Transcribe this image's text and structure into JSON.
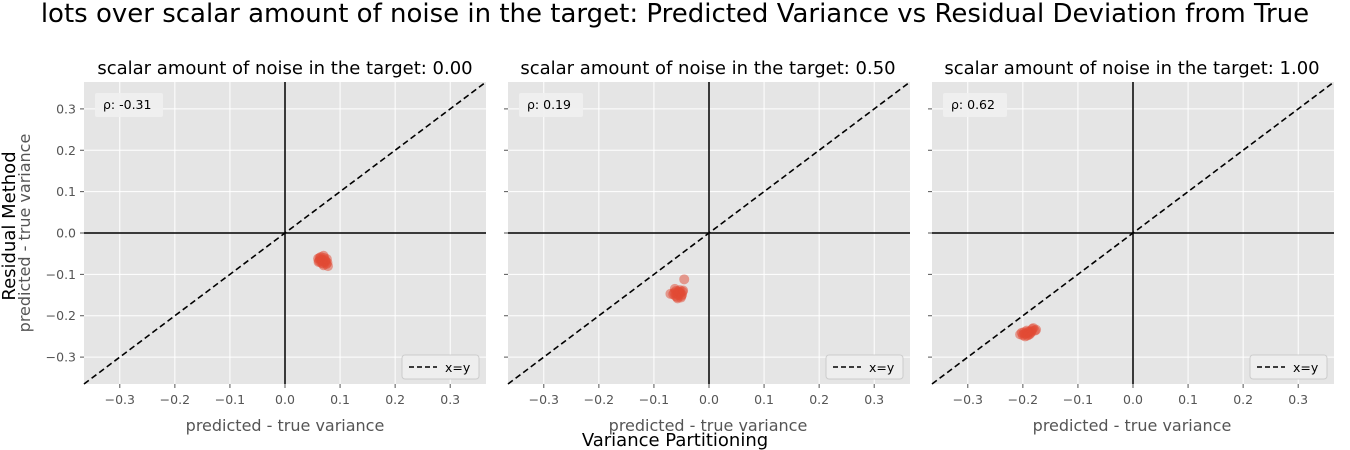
{
  "figure": {
    "suptitle": "lots over scalar amount of noise in the target: Predicted Variance vs Residual Deviation from True",
    "supxlabel": "Variance Partitioning",
    "supylabel": "Residual Method"
  },
  "chart_data": [
    {
      "type": "scatter",
      "title": "scalar amount of noise in the target: 0.00",
      "xlabel": "predicted - true variance",
      "ylabel": "predicted - true variance",
      "xlim": [
        -0.365,
        0.365
      ],
      "ylim": [
        -0.365,
        0.365
      ],
      "xticks": [
        -0.3,
        -0.2,
        -0.1,
        0.0,
        0.1,
        0.2,
        0.3
      ],
      "yticks": [
        -0.3,
        -0.2,
        -0.1,
        0.0,
        0.1,
        0.2,
        0.3
      ],
      "annotation": "ρ: -0.31",
      "grid": true,
      "legend": {
        "label": "x=y",
        "position": "lower-right"
      },
      "points": [
        [
          0.06,
          -0.062
        ],
        [
          0.065,
          -0.058
        ],
        [
          0.07,
          -0.055
        ],
        [
          0.068,
          -0.065
        ],
        [
          0.072,
          -0.07
        ],
        [
          0.075,
          -0.075
        ],
        [
          0.078,
          -0.08
        ],
        [
          0.062,
          -0.068
        ],
        [
          0.066,
          -0.072
        ],
        [
          0.071,
          -0.06
        ],
        [
          0.073,
          -0.066
        ],
        [
          0.064,
          -0.064
        ],
        [
          0.069,
          -0.074
        ],
        [
          0.074,
          -0.069
        ],
        [
          0.077,
          -0.072
        ],
        [
          0.063,
          -0.06
        ],
        [
          0.067,
          -0.067
        ],
        [
          0.07,
          -0.078
        ],
        [
          0.076,
          -0.063
        ],
        [
          0.061,
          -0.07
        ]
      ]
    },
    {
      "type": "scatter",
      "title": "scalar amount of noise in the target: 0.50",
      "xlabel": "predicted - true variance",
      "ylabel": "",
      "xlim": [
        -0.365,
        0.365
      ],
      "ylim": [
        -0.365,
        0.365
      ],
      "xticks": [
        -0.3,
        -0.2,
        -0.1,
        0.0,
        0.1,
        0.2,
        0.3
      ],
      "yticks": [
        -0.3,
        -0.2,
        -0.1,
        0.0,
        0.1,
        0.2,
        0.3
      ],
      "annotation": "ρ: 0.19",
      "grid": true,
      "legend": {
        "label": "x=y",
        "position": "lower-right"
      },
      "points": [
        [
          -0.065,
          -0.148
        ],
        [
          -0.06,
          -0.14
        ],
        [
          -0.055,
          -0.15
        ],
        [
          -0.058,
          -0.155
        ],
        [
          -0.052,
          -0.145
        ],
        [
          -0.048,
          -0.142
        ],
        [
          -0.062,
          -0.135
        ],
        [
          -0.057,
          -0.158
        ],
        [
          -0.05,
          -0.152
        ],
        [
          -0.045,
          -0.112
        ],
        [
          -0.053,
          -0.138
        ],
        [
          -0.059,
          -0.146
        ],
        [
          -0.054,
          -0.143
        ],
        [
          -0.061,
          -0.152
        ],
        [
          -0.056,
          -0.141
        ],
        [
          -0.049,
          -0.149
        ],
        [
          -0.063,
          -0.144
        ],
        [
          -0.051,
          -0.156
        ],
        [
          -0.07,
          -0.147
        ],
        [
          -0.047,
          -0.139
        ]
      ]
    },
    {
      "type": "scatter",
      "title": "scalar amount of noise in the target: 1.00",
      "xlabel": "predicted - true variance",
      "ylabel": "",
      "xlim": [
        -0.365,
        0.365
      ],
      "ylim": [
        -0.365,
        0.365
      ],
      "xticks": [
        -0.3,
        -0.2,
        -0.1,
        0.0,
        0.1,
        0.2,
        0.3
      ],
      "yticks": [
        -0.3,
        -0.2,
        -0.1,
        0.0,
        0.1,
        0.2,
        0.3
      ],
      "annotation": "ρ: 0.62",
      "grid": true,
      "legend": {
        "label": "x=y",
        "position": "lower-right"
      },
      "points": [
        [
          -0.205,
          -0.245
        ],
        [
          -0.198,
          -0.24
        ],
        [
          -0.192,
          -0.248
        ],
        [
          -0.188,
          -0.238
        ],
        [
          -0.183,
          -0.232
        ],
        [
          -0.178,
          -0.236
        ],
        [
          -0.195,
          -0.243
        ],
        [
          -0.19,
          -0.242
        ],
        [
          -0.185,
          -0.24
        ],
        [
          -0.2,
          -0.247
        ],
        [
          -0.193,
          -0.236
        ],
        [
          -0.187,
          -0.244
        ],
        [
          -0.181,
          -0.23
        ],
        [
          -0.196,
          -0.25
        ],
        [
          -0.189,
          -0.246
        ],
        [
          -0.176,
          -0.234
        ],
        [
          -0.202,
          -0.241
        ],
        [
          -0.184,
          -0.237
        ],
        [
          -0.191,
          -0.239
        ],
        [
          -0.197,
          -0.244
        ]
      ]
    }
  ]
}
